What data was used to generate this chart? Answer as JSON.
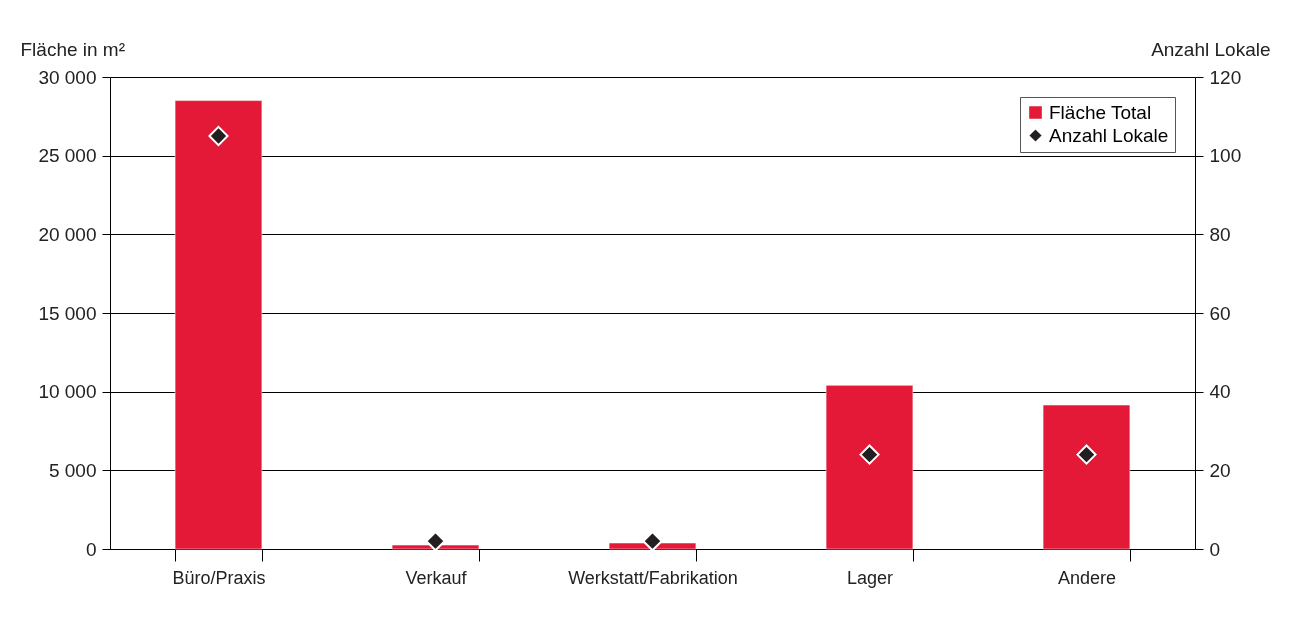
{
  "chart_data": {
    "type": "bar",
    "ylabel": "Fläche in m²",
    "y2label": "Anzahl Lokale",
    "categories": [
      "Büro/Praxis",
      "Verkauf",
      "Werkstatt/Fabrikation",
      "Lager",
      "Andere"
    ],
    "series": [
      {
        "name": "Fläche Total",
        "color": "#e31937",
        "values": [
          28500,
          250,
          380,
          10400,
          9150
        ]
      },
      {
        "name": "Anzahl Lokale",
        "type": "scatter",
        "axis": "y2",
        "color": "#231f20",
        "marker": "diamond",
        "values": [
          105,
          2,
          2,
          24,
          24
        ]
      }
    ],
    "ylim": [
      0,
      30000
    ],
    "yticks": [
      {
        "value": 0,
        "label": "0"
      },
      {
        "value": 5000,
        "label": "5 000"
      },
      {
        "value": 10000,
        "label": "10 000"
      },
      {
        "value": 15000,
        "label": "15 000"
      },
      {
        "value": 20000,
        "label": "20 000"
      },
      {
        "value": 25000,
        "label": "25 000"
      },
      {
        "value": 30000,
        "label": "30 000"
      }
    ],
    "y2lim": [
      0,
      120
    ],
    "y2ticks": [
      0,
      20,
      40,
      60,
      80,
      100,
      120
    ],
    "grid": "y",
    "legend": "top right"
  }
}
